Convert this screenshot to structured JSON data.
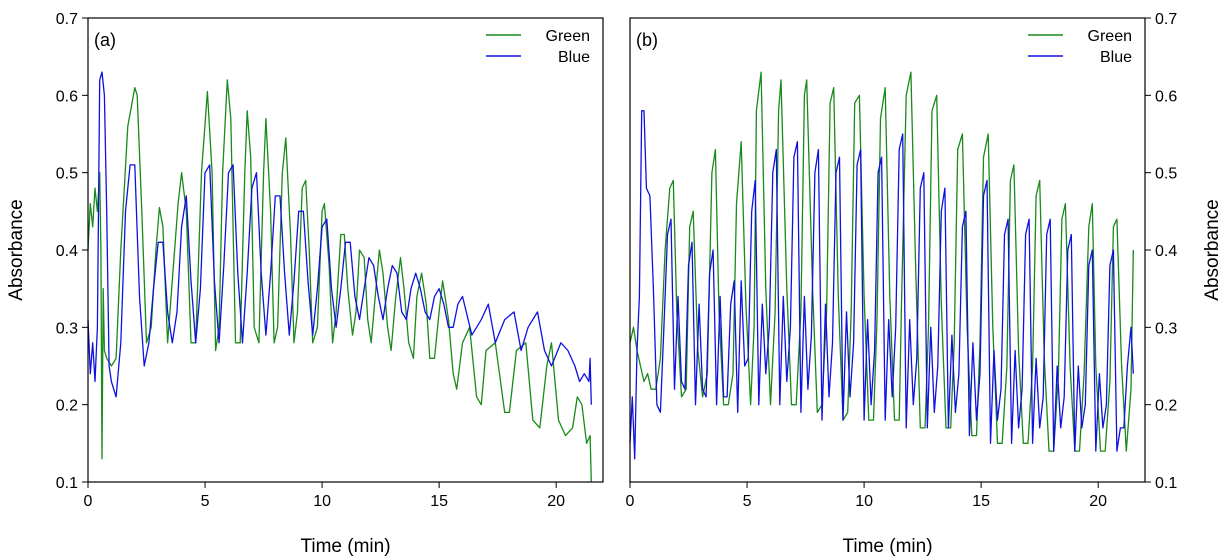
{
  "chart_data": [
    {
      "type": "line",
      "panel_label": "(a)",
      "xlabel": "Time (min)",
      "ylabel": "Absorbance",
      "xlim": [
        0,
        22
      ],
      "ylim": [
        0.1,
        0.7
      ],
      "xticks": [
        0,
        5,
        10,
        15,
        20
      ],
      "yticks": [
        0.1,
        0.2,
        0.3,
        0.4,
        0.5,
        0.6,
        0.7
      ],
      "ytick_labels": [
        "0.1",
        "0.2",
        "0.3",
        "0.4",
        "0.5",
        "0.6",
        "0.7"
      ],
      "y_axis_side": "left",
      "legend": "top-right",
      "grid": false,
      "series": [
        {
          "name": "Green",
          "color": "#1a8a1a",
          "x": [
            0,
            0.1,
            0.2,
            0.3,
            0.4,
            0.5,
            0.55,
            0.6,
            0.65,
            0.7,
            0.8,
            1.0,
            1.2,
            1.4,
            1.7,
            2.0,
            2.1,
            2.3,
            2.5,
            2.7,
            2.9,
            3.05,
            3.2,
            3.4,
            3.7,
            3.85,
            4.0,
            4.2,
            4.4,
            4.6,
            4.85,
            5.1,
            5.3,
            5.45,
            5.6,
            5.75,
            5.95,
            6.1,
            6.3,
            6.5,
            6.7,
            6.8,
            6.95,
            7.1,
            7.3,
            7.5,
            7.6,
            7.8,
            7.95,
            8.1,
            8.3,
            8.45,
            8.65,
            8.8,
            8.95,
            9.15,
            9.3,
            9.45,
            9.6,
            9.8,
            10.0,
            10.1,
            10.3,
            10.45,
            10.6,
            10.8,
            10.95,
            11.1,
            11.3,
            11.45,
            11.6,
            11.8,
            11.95,
            12.1,
            12.3,
            12.45,
            12.6,
            12.8,
            12.95,
            13.15,
            13.35,
            13.5,
            13.7,
            13.9,
            14.05,
            14.25,
            14.45,
            14.6,
            14.8,
            15.0,
            15.15,
            15.4,
            15.6,
            15.75,
            16.0,
            16.3,
            16.6,
            16.8,
            17.0,
            17.4,
            17.8,
            18.0,
            18.3,
            18.7,
            19.0,
            19.3,
            19.6,
            19.8,
            20.1,
            20.4,
            20.7,
            20.9,
            21.1,
            21.3,
            21.45,
            21.5
          ],
          "y": [
            0.4,
            0.46,
            0.43,
            0.48,
            0.45,
            0.5,
            0.4,
            0.13,
            0.35,
            0.27,
            0.26,
            0.25,
            0.26,
            0.4,
            0.56,
            0.61,
            0.6,
            0.45,
            0.28,
            0.3,
            0.4,
            0.455,
            0.43,
            0.28,
            0.4,
            0.46,
            0.5,
            0.45,
            0.28,
            0.28,
            0.5,
            0.605,
            0.5,
            0.27,
            0.3,
            0.5,
            0.62,
            0.57,
            0.28,
            0.28,
            0.5,
            0.58,
            0.52,
            0.3,
            0.28,
            0.5,
            0.57,
            0.45,
            0.28,
            0.3,
            0.5,
            0.545,
            0.42,
            0.28,
            0.32,
            0.48,
            0.49,
            0.4,
            0.28,
            0.3,
            0.45,
            0.46,
            0.38,
            0.28,
            0.32,
            0.42,
            0.42,
            0.35,
            0.29,
            0.32,
            0.4,
            0.39,
            0.31,
            0.28,
            0.35,
            0.4,
            0.37,
            0.3,
            0.27,
            0.34,
            0.39,
            0.35,
            0.28,
            0.26,
            0.34,
            0.37,
            0.33,
            0.26,
            0.26,
            0.32,
            0.36,
            0.31,
            0.24,
            0.22,
            0.28,
            0.3,
            0.21,
            0.2,
            0.27,
            0.28,
            0.19,
            0.19,
            0.27,
            0.28,
            0.18,
            0.17,
            0.25,
            0.28,
            0.18,
            0.16,
            0.17,
            0.21,
            0.2,
            0.15,
            0.16,
            0.1
          ]
        },
        {
          "name": "Blue",
          "color": "#1010e0",
          "x": [
            0,
            0.1,
            0.2,
            0.3,
            0.4,
            0.5,
            0.6,
            0.7,
            0.8,
            0.9,
            1.0,
            1.2,
            1.4,
            1.6,
            1.8,
            2.0,
            2.2,
            2.4,
            2.6,
            2.8,
            3.0,
            3.2,
            3.4,
            3.6,
            3.8,
            4.0,
            4.2,
            4.4,
            4.6,
            4.8,
            5.0,
            5.2,
            5.4,
            5.6,
            5.8,
            6.0,
            6.2,
            6.4,
            6.6,
            6.8,
            7.0,
            7.2,
            7.4,
            7.6,
            7.8,
            8.0,
            8.2,
            8.4,
            8.6,
            8.8,
            9.0,
            9.2,
            9.4,
            9.6,
            9.8,
            10.0,
            10.2,
            10.4,
            10.6,
            10.8,
            11.0,
            11.2,
            11.4,
            11.6,
            11.8,
            12.0,
            12.2,
            12.4,
            12.6,
            12.8,
            13.0,
            13.2,
            13.4,
            13.6,
            13.8,
            14.0,
            14.2,
            14.4,
            14.6,
            14.8,
            15.0,
            15.2,
            15.4,
            15.6,
            15.8,
            16.0,
            16.4,
            16.8,
            17.1,
            17.4,
            17.8,
            18.2,
            18.5,
            18.8,
            19.2,
            19.5,
            19.8,
            20.2,
            20.5,
            20.8,
            21.0,
            21.2,
            21.4,
            21.45,
            21.5
          ],
          "y": [
            0.31,
            0.24,
            0.28,
            0.23,
            0.3,
            0.62,
            0.63,
            0.6,
            0.45,
            0.25,
            0.23,
            0.21,
            0.28,
            0.45,
            0.51,
            0.51,
            0.34,
            0.25,
            0.28,
            0.35,
            0.41,
            0.41,
            0.32,
            0.28,
            0.32,
            0.43,
            0.47,
            0.36,
            0.28,
            0.35,
            0.5,
            0.51,
            0.36,
            0.28,
            0.38,
            0.5,
            0.51,
            0.37,
            0.28,
            0.37,
            0.48,
            0.5,
            0.37,
            0.29,
            0.37,
            0.47,
            0.47,
            0.37,
            0.29,
            0.36,
            0.45,
            0.45,
            0.36,
            0.29,
            0.35,
            0.43,
            0.44,
            0.35,
            0.3,
            0.35,
            0.41,
            0.41,
            0.34,
            0.31,
            0.35,
            0.39,
            0.38,
            0.34,
            0.31,
            0.35,
            0.38,
            0.37,
            0.32,
            0.31,
            0.35,
            0.37,
            0.35,
            0.32,
            0.31,
            0.34,
            0.35,
            0.33,
            0.3,
            0.3,
            0.33,
            0.34,
            0.29,
            0.31,
            0.33,
            0.28,
            0.31,
            0.32,
            0.27,
            0.3,
            0.32,
            0.27,
            0.25,
            0.28,
            0.27,
            0.25,
            0.23,
            0.24,
            0.23,
            0.26,
            0.2
          ]
        }
      ]
    },
    {
      "type": "line",
      "panel_label": "(b)",
      "xlabel": "Time (min)",
      "ylabel": "Absorbance",
      "xlim": [
        0,
        22
      ],
      "ylim": [
        0.1,
        0.7
      ],
      "xticks": [
        0,
        5,
        10,
        15,
        20
      ],
      "yticks": [
        0.1,
        0.2,
        0.3,
        0.4,
        0.5,
        0.6,
        0.7
      ],
      "ytick_labels": [
        "0.1",
        "0.2",
        "0.3",
        "0.4",
        "0.5",
        "0.6",
        "0.7"
      ],
      "y_axis_side": "right",
      "legend": "top-right",
      "grid": false,
      "series": [
        {
          "name": "Green",
          "color": "#1a8a1a",
          "x": [
            0,
            0.15,
            0.3,
            0.45,
            0.6,
            0.75,
            0.9,
            1.1,
            1.3,
            1.5,
            1.7,
            1.85,
            2.0,
            2.2,
            2.4,
            2.55,
            2.7,
            2.9,
            3.1,
            3.3,
            3.5,
            3.65,
            3.8,
            4.0,
            4.2,
            4.4,
            4.55,
            4.75,
            4.95,
            5.15,
            5.3,
            5.4,
            5.6,
            5.8,
            6.0,
            6.2,
            6.35,
            6.45,
            6.7,
            6.9,
            7.1,
            7.3,
            7.45,
            7.55,
            7.8,
            8.0,
            8.2,
            8.4,
            8.55,
            8.7,
            8.9,
            9.1,
            9.3,
            9.45,
            9.6,
            9.8,
            10.0,
            10.2,
            10.4,
            10.55,
            10.7,
            10.9,
            11.1,
            11.3,
            11.5,
            11.6,
            11.8,
            12.0,
            12.2,
            12.4,
            12.6,
            12.75,
            12.9,
            13.1,
            13.3,
            13.5,
            13.7,
            13.85,
            14.0,
            14.2,
            14.4,
            14.6,
            14.8,
            14.95,
            15.1,
            15.3,
            15.5,
            15.7,
            15.9,
            16.1,
            16.25,
            16.4,
            16.6,
            16.8,
            17.0,
            17.2,
            17.35,
            17.5,
            17.7,
            17.9,
            18.1,
            18.3,
            18.45,
            18.6,
            18.8,
            19.0,
            19.2,
            19.4,
            19.6,
            19.75,
            19.9,
            20.1,
            20.3,
            20.5,
            20.65,
            20.8,
            21.0,
            21.2,
            21.4,
            21.5
          ],
          "y": [
            0.28,
            0.3,
            0.27,
            0.25,
            0.23,
            0.24,
            0.22,
            0.22,
            0.26,
            0.4,
            0.48,
            0.49,
            0.32,
            0.21,
            0.22,
            0.43,
            0.45,
            0.27,
            0.21,
            0.24,
            0.5,
            0.53,
            0.32,
            0.2,
            0.2,
            0.24,
            0.46,
            0.54,
            0.33,
            0.2,
            0.3,
            0.58,
            0.63,
            0.35,
            0.2,
            0.32,
            0.58,
            0.62,
            0.35,
            0.2,
            0.2,
            0.32,
            0.6,
            0.62,
            0.35,
            0.19,
            0.2,
            0.32,
            0.59,
            0.61,
            0.34,
            0.18,
            0.19,
            0.32,
            0.59,
            0.6,
            0.34,
            0.18,
            0.18,
            0.31,
            0.57,
            0.61,
            0.34,
            0.18,
            0.18,
            0.33,
            0.6,
            0.63,
            0.38,
            0.17,
            0.17,
            0.3,
            0.58,
            0.6,
            0.33,
            0.17,
            0.17,
            0.28,
            0.53,
            0.55,
            0.3,
            0.16,
            0.16,
            0.28,
            0.52,
            0.55,
            0.3,
            0.15,
            0.15,
            0.25,
            0.49,
            0.51,
            0.27,
            0.15,
            0.15,
            0.25,
            0.47,
            0.49,
            0.26,
            0.14,
            0.14,
            0.24,
            0.44,
            0.46,
            0.25,
            0.14,
            0.14,
            0.24,
            0.43,
            0.46,
            0.25,
            0.14,
            0.14,
            0.23,
            0.43,
            0.44,
            0.25,
            0.14,
            0.22,
            0.4
          ]
        },
        {
          "name": "Blue",
          "color": "#1010e0",
          "x": [
            0,
            0.1,
            0.2,
            0.3,
            0.4,
            0.5,
            0.6,
            0.7,
            0.85,
            1.0,
            1.15,
            1.3,
            1.45,
            1.6,
            1.75,
            1.9,
            2.05,
            2.2,
            2.35,
            2.5,
            2.65,
            2.8,
            2.95,
            3.1,
            3.25,
            3.4,
            3.55,
            3.7,
            3.85,
            4.0,
            4.15,
            4.3,
            4.45,
            4.6,
            4.75,
            4.9,
            5.05,
            5.2,
            5.35,
            5.5,
            5.65,
            5.8,
            5.95,
            6.1,
            6.25,
            6.4,
            6.55,
            6.7,
            6.85,
            7.0,
            7.15,
            7.3,
            7.45,
            7.6,
            7.75,
            7.9,
            8.05,
            8.2,
            8.35,
            8.5,
            8.65,
            8.8,
            8.95,
            9.1,
            9.25,
            9.4,
            9.55,
            9.7,
            9.85,
            10.0,
            10.15,
            10.3,
            10.45,
            10.6,
            10.75,
            10.9,
            11.05,
            11.2,
            11.35,
            11.5,
            11.65,
            11.8,
            11.95,
            12.1,
            12.25,
            12.4,
            12.55,
            12.7,
            12.85,
            13.0,
            13.15,
            13.3,
            13.45,
            13.6,
            13.75,
            13.9,
            14.05,
            14.2,
            14.35,
            14.5,
            14.65,
            14.8,
            14.95,
            15.1,
            15.25,
            15.4,
            15.55,
            15.7,
            15.85,
            16.0,
            16.15,
            16.3,
            16.45,
            16.6,
            16.75,
            16.9,
            17.05,
            17.2,
            17.35,
            17.5,
            17.65,
            17.8,
            17.95,
            18.1,
            18.25,
            18.4,
            18.55,
            18.7,
            18.85,
            19.0,
            19.15,
            19.3,
            19.45,
            19.6,
            19.75,
            19.9,
            20.05,
            20.2,
            20.35,
            20.5,
            20.65,
            20.8,
            20.95,
            21.1,
            21.25,
            21.4,
            21.5
          ],
          "y": [
            0.15,
            0.21,
            0.13,
            0.27,
            0.34,
            0.58,
            0.58,
            0.48,
            0.47,
            0.35,
            0.2,
            0.19,
            0.3,
            0.42,
            0.44,
            0.22,
            0.34,
            0.23,
            0.22,
            0.38,
            0.41,
            0.2,
            0.33,
            0.22,
            0.21,
            0.37,
            0.4,
            0.2,
            0.34,
            0.21,
            0.21,
            0.33,
            0.36,
            0.19,
            0.36,
            0.25,
            0.26,
            0.45,
            0.49,
            0.2,
            0.33,
            0.24,
            0.3,
            0.5,
            0.53,
            0.2,
            0.34,
            0.23,
            0.3,
            0.52,
            0.54,
            0.19,
            0.34,
            0.22,
            0.29,
            0.5,
            0.53,
            0.18,
            0.33,
            0.21,
            0.28,
            0.5,
            0.52,
            0.18,
            0.32,
            0.21,
            0.28,
            0.51,
            0.53,
            0.18,
            0.31,
            0.2,
            0.27,
            0.5,
            0.52,
            0.18,
            0.31,
            0.21,
            0.3,
            0.53,
            0.55,
            0.17,
            0.31,
            0.2,
            0.26,
            0.48,
            0.5,
            0.17,
            0.3,
            0.19,
            0.25,
            0.45,
            0.48,
            0.17,
            0.29,
            0.19,
            0.24,
            0.43,
            0.45,
            0.16,
            0.28,
            0.18,
            0.24,
            0.47,
            0.49,
            0.15,
            0.27,
            0.18,
            0.22,
            0.42,
            0.44,
            0.15,
            0.27,
            0.17,
            0.22,
            0.42,
            0.44,
            0.15,
            0.26,
            0.17,
            0.21,
            0.42,
            0.44,
            0.14,
            0.25,
            0.17,
            0.21,
            0.4,
            0.42,
            0.14,
            0.25,
            0.17,
            0.2,
            0.38,
            0.4,
            0.14,
            0.24,
            0.17,
            0.2,
            0.38,
            0.4,
            0.14,
            0.17,
            0.17,
            0.25,
            0.3,
            0.24
          ]
        }
      ]
    }
  ]
}
